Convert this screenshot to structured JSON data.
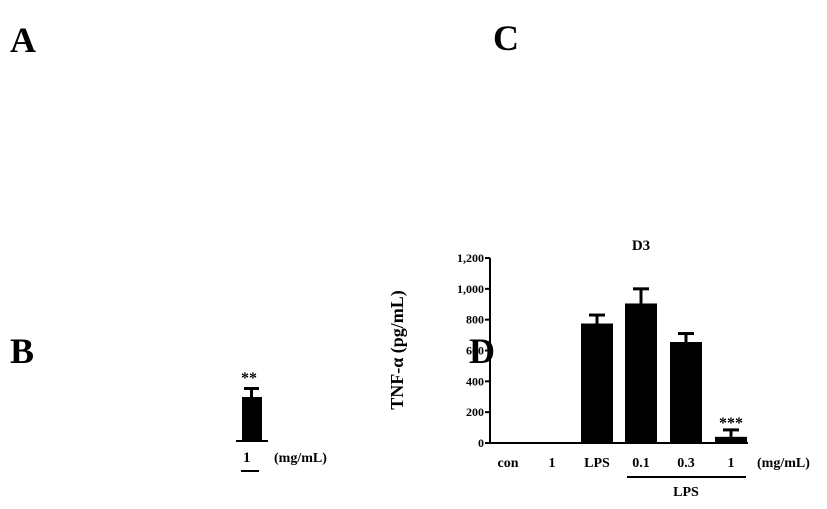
{
  "panel_labels": {
    "A": "A",
    "B": "B",
    "C": "C",
    "D": "D"
  },
  "fragment": {
    "stars": "**",
    "tick": "1",
    "unit": "(mg/mL)",
    "value": 0.35
  },
  "chart_data": {
    "type": "bar",
    "title": "D3",
    "ylabel": "TNF-α (pg/mL)",
    "xlabel": "",
    "unit_label": "(mg/mL)",
    "group_label": "LPS",
    "categories": [
      "con",
      "1",
      "LPS",
      "0.1",
      "0.3",
      "1"
    ],
    "values": [
      0,
      0,
      775,
      905,
      655,
      40
    ],
    "errors": [
      0,
      0,
      55,
      95,
      55,
      45
    ],
    "significance": [
      "",
      "",
      "",
      "",
      "",
      "***"
    ],
    "ylim": [
      0,
      1200
    ],
    "yticks": [
      0,
      200,
      400,
      600,
      800,
      1000,
      1200
    ],
    "ytick_labels": [
      "0",
      "200",
      "400",
      "600",
      "800",
      "1,000",
      "1,200"
    ],
    "grid": false,
    "legend": "none"
  }
}
